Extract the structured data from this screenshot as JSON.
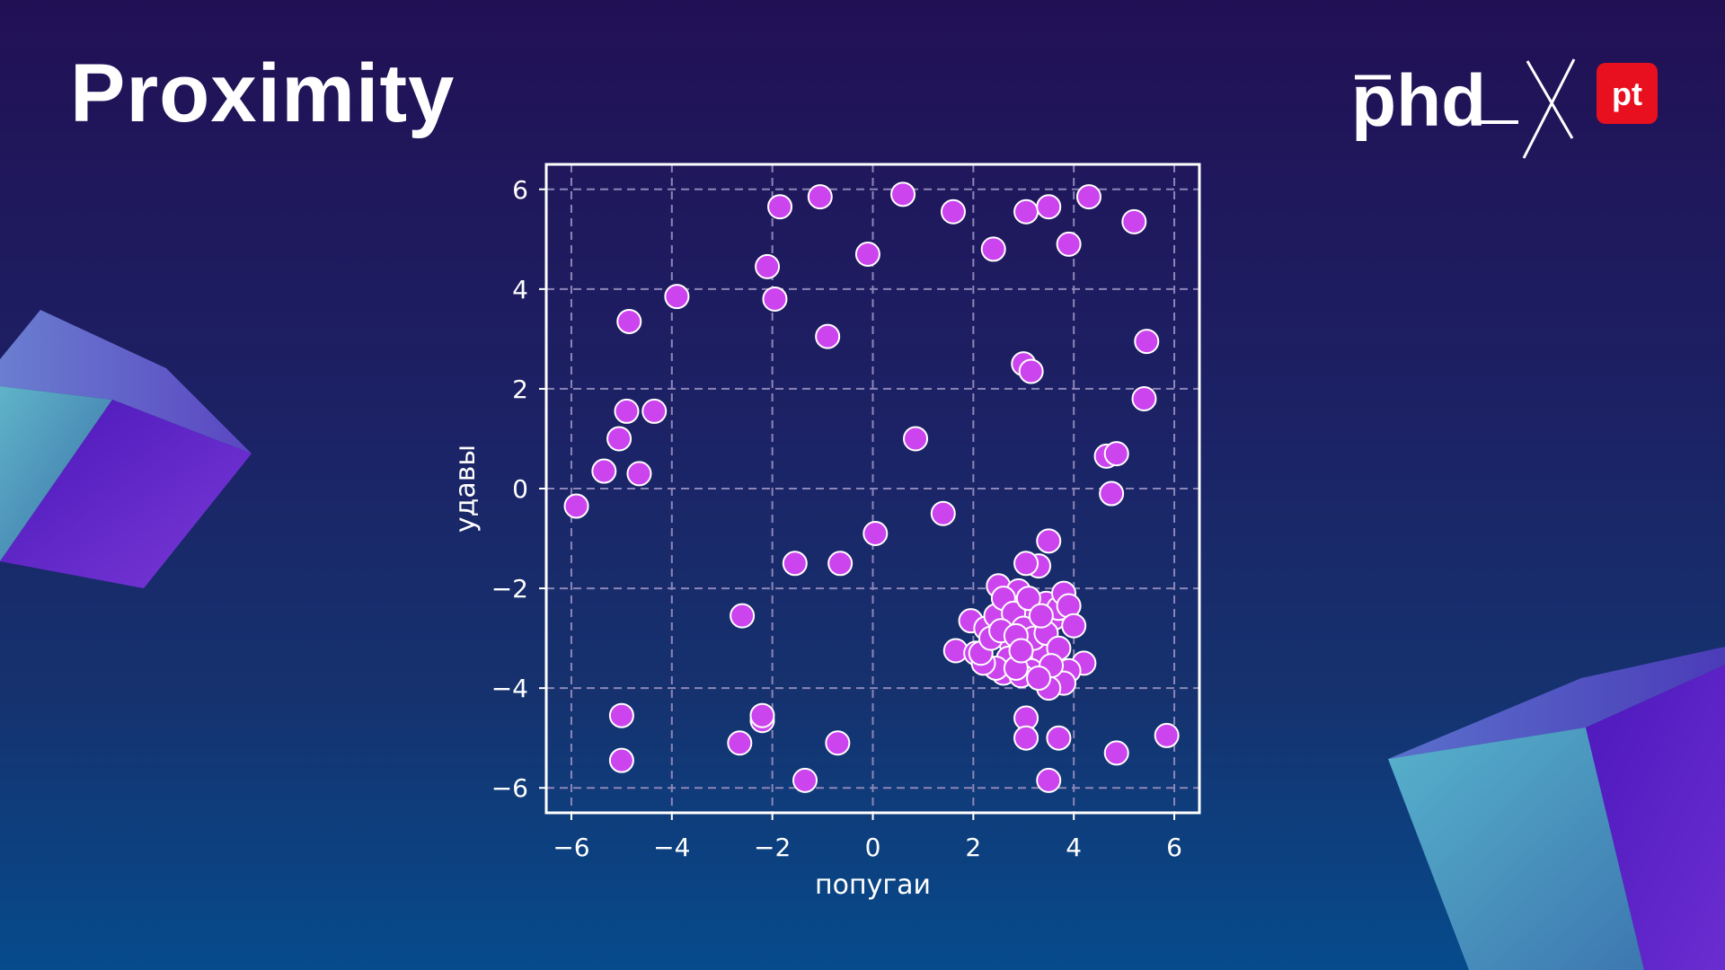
{
  "slide": {
    "title": "Proximity",
    "logo_text": "phd",
    "badge_text": "pt",
    "colors": {
      "badge": "#e8101e",
      "point_fill": "#cc44ee",
      "point_stroke": "#ffffff",
      "grid": "#8d86b8"
    }
  },
  "chart_data": {
    "type": "scatter",
    "xlabel": "попугаи",
    "ylabel": "удавы",
    "xlim": [
      -6.5,
      6.5
    ],
    "ylim": [
      -6.5,
      6.5
    ],
    "xticks": [
      -6,
      -4,
      -2,
      0,
      2,
      4,
      6
    ],
    "yticks": [
      -6,
      -4,
      -2,
      0,
      2,
      4,
      6
    ],
    "xtick_labels": [
      "−6",
      "−4",
      "−2",
      "0",
      "2",
      "4",
      "6"
    ],
    "ytick_labels": [
      "−6",
      "−4",
      "−2",
      "0",
      "2",
      "4",
      "6"
    ],
    "grid": true,
    "points": [
      [
        -5.9,
        -0.35
      ],
      [
        -5.35,
        0.35
      ],
      [
        -5.05,
        1.0
      ],
      [
        -4.9,
        1.55
      ],
      [
        -4.85,
        3.35
      ],
      [
        -4.65,
        0.3
      ],
      [
        -4.35,
        1.55
      ],
      [
        -3.9,
        3.85
      ],
      [
        -5.0,
        -4.55
      ],
      [
        -5.0,
        -5.45
      ],
      [
        -2.6,
        -2.55
      ],
      [
        -2.65,
        -5.1
      ],
      [
        -2.2,
        -4.65
      ],
      [
        -2.2,
        -4.55
      ],
      [
        -2.1,
        4.45
      ],
      [
        -1.95,
        3.8
      ],
      [
        -1.85,
        5.65
      ],
      [
        -1.55,
        -1.5
      ],
      [
        -1.35,
        -5.85
      ],
      [
        -1.05,
        5.85
      ],
      [
        -0.9,
        3.05
      ],
      [
        -0.7,
        -5.1
      ],
      [
        -0.65,
        -1.5
      ],
      [
        -0.1,
        4.7
      ],
      [
        0.05,
        -0.9
      ],
      [
        0.6,
        5.9
      ],
      [
        0.85,
        1.0
      ],
      [
        1.4,
        -0.5
      ],
      [
        1.6,
        5.55
      ],
      [
        2.4,
        4.8
      ],
      [
        3.0,
        2.5
      ],
      [
        3.15,
        2.35
      ],
      [
        3.05,
        5.55
      ],
      [
        3.5,
        5.65
      ],
      [
        3.9,
        4.9
      ],
      [
        4.3,
        5.85
      ],
      [
        5.2,
        5.35
      ],
      [
        5.45,
        2.95
      ],
      [
        5.4,
        1.8
      ],
      [
        4.65,
        0.65
      ],
      [
        4.85,
        0.7
      ],
      [
        4.75,
        -0.1
      ],
      [
        3.5,
        -1.05
      ],
      [
        3.3,
        -1.55
      ],
      [
        3.05,
        -1.5
      ],
      [
        3.05,
        -4.6
      ],
      [
        3.05,
        -5.0
      ],
      [
        3.7,
        -5.0
      ],
      [
        3.5,
        -5.85
      ],
      [
        4.85,
        -5.3
      ],
      [
        5.85,
        -4.95
      ],
      [
        1.65,
        -3.25
      ],
      [
        1.95,
        -2.65
      ],
      [
        2.05,
        -3.3
      ],
      [
        2.25,
        -2.8
      ],
      [
        2.5,
        -1.95
      ],
      [
        2.45,
        -2.55
      ],
      [
        2.6,
        -3.7
      ],
      [
        2.75,
        -3.1
      ],
      [
        2.9,
        -2.05
      ],
      [
        3.0,
        -2.35
      ],
      [
        3.15,
        -2.65
      ],
      [
        3.25,
        -3.6
      ],
      [
        3.4,
        -3.35
      ],
      [
        3.45,
        -2.3
      ],
      [
        3.6,
        -2.6
      ],
      [
        3.7,
        -2.4
      ],
      [
        3.8,
        -2.1
      ],
      [
        3.9,
        -2.35
      ],
      [
        4.0,
        -2.75
      ],
      [
        4.2,
        -3.5
      ],
      [
        3.9,
        -3.65
      ],
      [
        3.8,
        -3.9
      ],
      [
        3.5,
        -4.0
      ],
      [
        3.15,
        -3.65
      ],
      [
        2.95,
        -3.75
      ],
      [
        2.7,
        -3.4
      ],
      [
        2.45,
        -3.6
      ],
      [
        2.2,
        -3.5
      ],
      [
        2.15,
        -3.3
      ],
      [
        2.6,
        -2.2
      ],
      [
        2.8,
        -2.5
      ],
      [
        3.0,
        -2.8
      ],
      [
        3.2,
        -3.0
      ],
      [
        3.45,
        -2.9
      ],
      [
        3.7,
        -3.2
      ],
      [
        2.35,
        -3.0
      ],
      [
        2.55,
        -2.85
      ],
      [
        2.85,
        -2.95
      ],
      [
        3.1,
        -2.2
      ],
      [
        3.35,
        -2.55
      ],
      [
        3.55,
        -3.55
      ],
      [
        3.3,
        -3.8
      ],
      [
        2.85,
        -3.6
      ],
      [
        2.95,
        -3.25
      ]
    ]
  }
}
